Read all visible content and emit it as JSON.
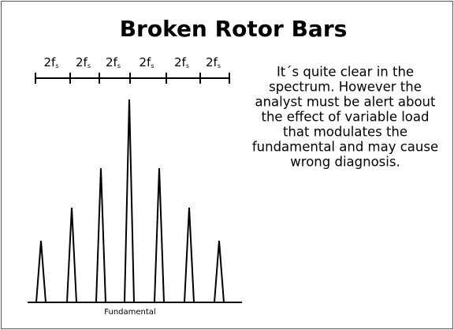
{
  "title": "Broken Rotor Bars",
  "spacing_labels": [
    {
      "text": "2f",
      "subscript": "s"
    },
    {
      "text": "2f",
      "subscript": "s"
    },
    {
      "text": "2f",
      "subscript": "s"
    },
    {
      "text": "2f",
      "subscript": "s"
    },
    {
      "text": "2f",
      "subscript": "s"
    },
    {
      "text": "2f",
      "subscript": "s"
    }
  ],
  "paragraph": [
    "It´s quite clear in the",
    "spectrum. However  the",
    "analyst must be alert about",
    "the effect of  variable load",
    "that modulates the",
    "fundamental and may cause",
    "wrong diagnosis."
  ],
  "baseline_label": "Fundamental"
}
